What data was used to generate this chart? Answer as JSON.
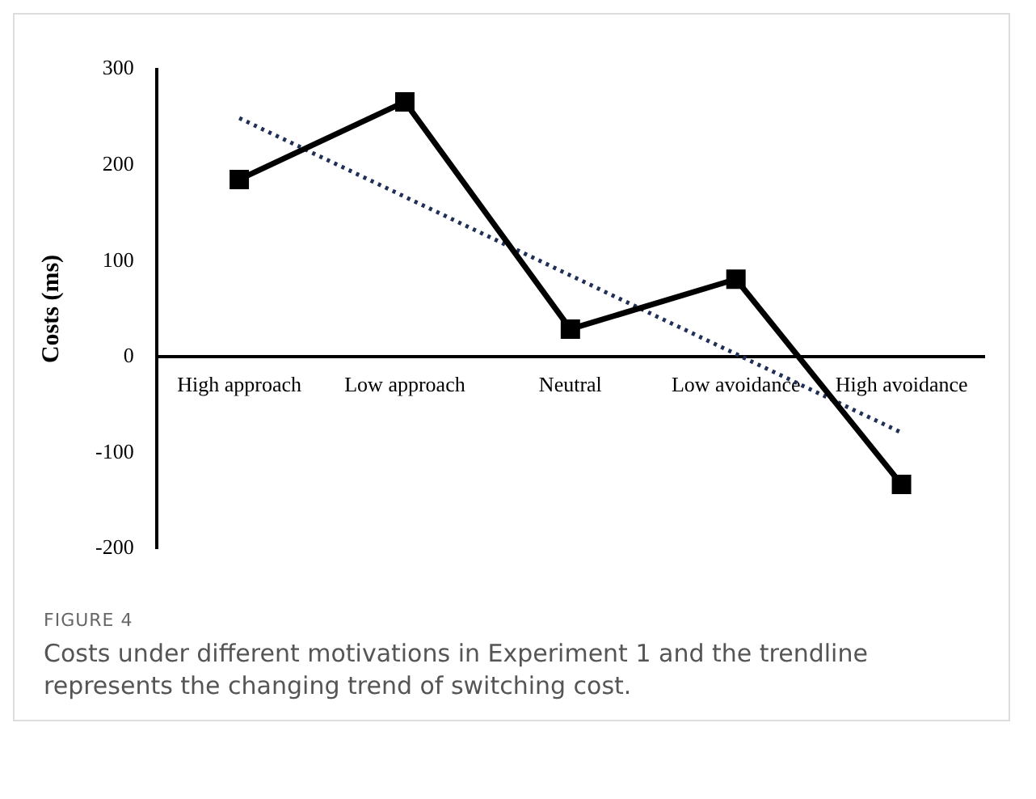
{
  "chart_data": {
    "type": "line",
    "ylabel": "Costs (ms)",
    "categories": [
      "High approach",
      "Low approach",
      "Neutral",
      "Low avoidance",
      "High avoidance"
    ],
    "series": [
      {
        "type": "line",
        "color": "#000000",
        "values": [
          185,
          266,
          29,
          81,
          -133
        ],
        "marker": "square",
        "line_style": "solid"
      },
      {
        "type": "line",
        "color": "#1f2f55",
        "x": [
          "High approach",
          "High avoidance"
        ],
        "values": [
          249,
          -79
        ],
        "marker": "none",
        "line_style": "dotted"
      }
    ],
    "ylim": [
      -200,
      300
    ],
    "yticks": [
      -200,
      -100,
      0,
      100,
      200,
      300
    ],
    "grid": false,
    "legend": false,
    "annotations": [
      "FIGURE 4",
      "Costs under different motivations in Experiment 1 and the trendline represents the changing trend of switching cost."
    ]
  }
}
